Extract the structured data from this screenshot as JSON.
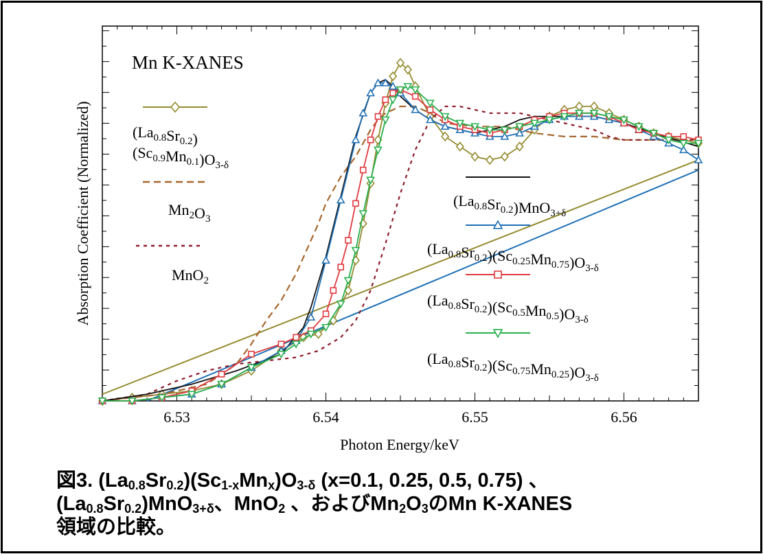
{
  "chart_data": {
    "type": "line",
    "title": "Mn K-XANES",
    "xlabel": "Photon Energy/keV",
    "ylabel": "Absorption Coefficient (Normalized)",
    "xlim": [
      6.525,
      6.565
    ],
    "ylim": [
      0,
      1.12
    ],
    "xticks": [
      "6.53",
      "6.54",
      "6.55",
      "6.56"
    ],
    "y_tick_labels_shown": false,
    "grid": false,
    "legend_placement": "inside",
    "series": [
      {
        "legend": [
          {
            "text": "(La"
          },
          {
            "sub": "0.8"
          },
          {
            "text": "Sr"
          },
          {
            "sub": "0.2"
          },
          {
            "text": ")"
          },
          {
            "br": true
          },
          {
            "text": "(Sc"
          },
          {
            "sub": "0.9"
          },
          {
            "text": "Mn"
          },
          {
            "sub": "0.1"
          },
          {
            "text": ")O"
          },
          {
            "sub": "3-δ"
          }
        ],
        "color": "#948a2f",
        "marker": "diamond",
        "dash": "",
        "x": [
          6.525,
          6.527,
          6.529,
          6.531,
          6.533,
          6.535,
          6.537,
          6.5385,
          6.5395,
          6.5405,
          6.5415,
          6.542,
          6.5425,
          6.543,
          6.5435,
          6.544,
          6.5445,
          6.545,
          6.5455,
          6.546,
          6.547,
          6.548,
          6.549,
          6.55,
          6.551,
          6.552,
          6.553,
          6.554,
          6.555,
          6.556,
          6.557,
          6.558,
          6.559,
          6.56,
          6.561,
          6.562,
          6.563,
          6.564,
          6.565
        ],
        "y": [
          0.0,
          0.01,
          0.02,
          0.03,
          0.05,
          0.09,
          0.15,
          0.19,
          0.2,
          0.24,
          0.33,
          0.42,
          0.53,
          0.65,
          0.78,
          0.89,
          0.97,
          1.01,
          0.99,
          0.94,
          0.85,
          0.79,
          0.76,
          0.73,
          0.72,
          0.73,
          0.76,
          0.81,
          0.85,
          0.87,
          0.88,
          0.88,
          0.86,
          0.84,
          0.82,
          0.8,
          0.79,
          0.78,
          0.77
        ]
      },
      {
        "legend": [
          {
            "text": "Mn"
          },
          {
            "sub": "2"
          },
          {
            "text": "O"
          },
          {
            "sub": "3"
          }
        ],
        "color": "#a6662d",
        "marker": "none",
        "dash": "10,6",
        "x": [
          6.525,
          6.529,
          6.532,
          6.534,
          6.535,
          6.536,
          6.537,
          6.538,
          6.539,
          6.5395,
          6.54,
          6.5405,
          6.541,
          6.542,
          6.5425,
          6.543,
          6.5435,
          6.544,
          6.545,
          6.546,
          6.547,
          6.548,
          6.55,
          6.552,
          6.554,
          6.556,
          6.558,
          6.56,
          6.562,
          6.565
        ],
        "y": [
          0.0,
          0.02,
          0.05,
          0.11,
          0.17,
          0.24,
          0.3,
          0.38,
          0.48,
          0.53,
          0.59,
          0.63,
          0.67,
          0.73,
          0.77,
          0.81,
          0.84,
          0.86,
          0.88,
          0.88,
          0.86,
          0.83,
          0.82,
          0.82,
          0.8,
          0.79,
          0.79,
          0.78,
          0.78,
          0.78
        ]
      },
      {
        "legend": [
          {
            "text": "MnO"
          },
          {
            "sub": "2"
          }
        ],
        "color": "#8c1b2a",
        "marker": "none",
        "dash": "5,6",
        "x": [
          6.525,
          6.528,
          6.53,
          6.532,
          6.534,
          6.536,
          6.538,
          6.5395,
          6.541,
          6.542,
          6.543,
          6.544,
          6.545,
          6.546,
          6.547,
          6.548,
          6.549,
          6.55,
          6.551,
          6.552,
          6.553,
          6.554,
          6.555,
          6.556,
          6.557,
          6.558,
          6.559,
          6.56,
          6.562,
          6.565
        ],
        "y": [
          0.0,
          0.02,
          0.06,
          0.09,
          0.11,
          0.12,
          0.13,
          0.15,
          0.19,
          0.24,
          0.33,
          0.47,
          0.62,
          0.75,
          0.84,
          0.88,
          0.88,
          0.87,
          0.86,
          0.86,
          0.86,
          0.85,
          0.84,
          0.83,
          0.82,
          0.81,
          0.79,
          0.78,
          0.78,
          0.78
        ]
      },
      {
        "legend": [
          {
            "text": "(La"
          },
          {
            "sub": "0.8"
          },
          {
            "text": "Sr"
          },
          {
            "sub": "0.2"
          },
          {
            "text": ")MnO"
          },
          {
            "sub": "3+δ"
          }
        ],
        "color": "#111111",
        "marker": "none",
        "dash": "",
        "x": [
          6.525,
          6.528,
          6.531,
          6.534,
          6.537,
          6.5385,
          6.539,
          6.54,
          6.541,
          6.542,
          6.543,
          6.5435,
          6.544,
          6.5445,
          6.545,
          6.546,
          6.547,
          6.548,
          6.549,
          6.55,
          6.551,
          6.552,
          6.553,
          6.554,
          6.555,
          6.556,
          6.558,
          6.56,
          6.562,
          6.565
        ],
        "y": [
          0.0,
          0.02,
          0.05,
          0.09,
          0.14,
          0.22,
          0.28,
          0.43,
          0.61,
          0.79,
          0.92,
          0.95,
          0.96,
          0.94,
          0.91,
          0.87,
          0.84,
          0.82,
          0.81,
          0.8,
          0.81,
          0.82,
          0.84,
          0.85,
          0.85,
          0.85,
          0.85,
          0.83,
          0.8,
          0.76
        ]
      },
      {
        "legend": [
          {
            "text": "(La"
          },
          {
            "sub": "0.8"
          },
          {
            "text": "Sr"
          },
          {
            "sub": "0.2"
          },
          {
            "text": ")(Sc"
          },
          {
            "sub": "0.25"
          },
          {
            "text": "Mn"
          },
          {
            "sub": "0.75"
          },
          {
            "text": ")O"
          },
          {
            "sub": "3-δ"
          }
        ],
        "color": "#1f6fb4",
        "marker": "triangle-up",
        "dash": "",
        "x": [
          6.525,
          6.527,
          6.529,
          6.531,
          6.533,
          6.535,
          6.537,
          6.538,
          6.539,
          6.54,
          6.541,
          6.542,
          6.5425,
          6.543,
          6.5435,
          6.544,
          6.5445,
          6.545,
          6.546,
          6.547,
          6.548,
          6.549,
          6.55,
          6.551,
          6.552,
          6.553,
          6.554,
          6.555,
          6.556,
          6.557,
          6.558,
          6.559,
          6.56,
          6.561,
          6.562,
          6.563,
          6.564,
          6.565
        ],
        "y": [
          0.0,
          0.0,
          0.01,
          0.02,
          0.05,
          0.1,
          0.15,
          0.18,
          0.25,
          0.42,
          0.6,
          0.78,
          0.86,
          0.92,
          0.95,
          0.95,
          0.94,
          0.92,
          0.87,
          0.84,
          0.82,
          0.81,
          0.8,
          0.79,
          0.79,
          0.8,
          0.82,
          0.84,
          0.85,
          0.85,
          0.85,
          0.84,
          0.83,
          0.81,
          0.79,
          0.77,
          0.75,
          0.72
        ]
      },
      {
        "legend": [
          {
            "text": "(La"
          },
          {
            "sub": "0.8"
          },
          {
            "text": "Sr"
          },
          {
            "sub": "0.2"
          },
          {
            "text": ")(Sc"
          },
          {
            "sub": "0.5"
          },
          {
            "text": "Mn"
          },
          {
            "sub": "0.5"
          },
          {
            "text": ")O"
          },
          {
            "sub": "3-δ"
          }
        ],
        "color": "#e0393e",
        "marker": "square",
        "dash": "",
        "x": [
          6.525,
          6.527,
          6.529,
          6.531,
          6.533,
          6.535,
          6.537,
          6.538,
          6.539,
          6.54,
          6.5405,
          6.541,
          6.5415,
          6.542,
          6.5425,
          6.543,
          6.5435,
          6.544,
          6.5445,
          6.545,
          6.546,
          6.547,
          6.548,
          6.549,
          6.55,
          6.551,
          6.552,
          6.553,
          6.554,
          6.555,
          6.556,
          6.557,
          6.558,
          6.559,
          6.56,
          6.561,
          6.562,
          6.563,
          6.564,
          6.565
        ],
        "y": [
          0.0,
          0.0,
          0.01,
          0.03,
          0.08,
          0.14,
          0.17,
          0.19,
          0.21,
          0.26,
          0.33,
          0.4,
          0.48,
          0.59,
          0.69,
          0.78,
          0.85,
          0.9,
          0.92,
          0.93,
          0.91,
          0.87,
          0.84,
          0.82,
          0.81,
          0.8,
          0.81,
          0.82,
          0.84,
          0.85,
          0.86,
          0.86,
          0.86,
          0.85,
          0.83,
          0.81,
          0.8,
          0.79,
          0.79,
          0.78
        ]
      },
      {
        "legend": [
          {
            "text": "(La"
          },
          {
            "sub": "0.8"
          },
          {
            "text": "Sr"
          },
          {
            "sub": "0.2"
          },
          {
            "text": ")(Sc"
          },
          {
            "sub": "0.75"
          },
          {
            "text": "Mn"
          },
          {
            "sub": "0.25"
          },
          {
            "text": ")O"
          },
          {
            "sub": "3-δ"
          }
        ],
        "color": "#27b04c",
        "marker": "triangle-down",
        "dash": "",
        "x": [
          6.525,
          6.527,
          6.529,
          6.531,
          6.533,
          6.535,
          6.537,
          6.538,
          6.539,
          6.54,
          6.541,
          6.5415,
          6.542,
          6.5425,
          6.543,
          6.5435,
          6.544,
          6.5445,
          6.545,
          6.5455,
          6.546,
          6.547,
          6.548,
          6.549,
          6.55,
          6.551,
          6.552,
          6.553,
          6.554,
          6.555,
          6.556,
          6.557,
          6.558,
          6.559,
          6.56,
          6.561,
          6.562,
          6.563,
          6.564,
          6.565
        ],
        "y": [
          0.0,
          0.0,
          0.01,
          0.02,
          0.05,
          0.1,
          0.14,
          0.17,
          0.2,
          0.22,
          0.29,
          0.36,
          0.45,
          0.56,
          0.66,
          0.75,
          0.84,
          0.9,
          0.93,
          0.94,
          0.93,
          0.89,
          0.85,
          0.83,
          0.82,
          0.81,
          0.81,
          0.82,
          0.83,
          0.84,
          0.85,
          0.86,
          0.86,
          0.85,
          0.84,
          0.82,
          0.8,
          0.78,
          0.77,
          0.77
        ]
      }
    ],
    "extra_lines": [
      {
        "color": "#948a2f",
        "x": [
          6.525,
          6.565
        ],
        "y": [
          0.02,
          0.72
        ]
      },
      {
        "color": "#1f6fb4",
        "x": [
          6.528,
          6.565
        ],
        "y": [
          0.0,
          0.69
        ]
      }
    ]
  },
  "caption": [
    {
      "text": "図3. (La"
    },
    {
      "sub": "0.8"
    },
    {
      "text": "Sr"
    },
    {
      "sub": "0.2"
    },
    {
      "text": ")(Sc"
    },
    {
      "sub": "1-x"
    },
    {
      "text": "Mn"
    },
    {
      "sub": "x"
    },
    {
      "text": ")O"
    },
    {
      "sub": "3-δ"
    },
    {
      "text": " (x=0.1, 0.25, 0.5, 0.75) 、"
    },
    {
      "br": true
    },
    {
      "text": "(La"
    },
    {
      "sub": "0.8"
    },
    {
      "text": "Sr"
    },
    {
      "sub": "0.2"
    },
    {
      "text": ")MnO"
    },
    {
      "sub": "3+δ"
    },
    {
      "text": "、MnO"
    },
    {
      "sub": "2"
    },
    {
      "text": " 、およびMn"
    },
    {
      "sub": "2"
    },
    {
      "text": "O"
    },
    {
      "sub": "3"
    },
    {
      "text": "のMn K-XANES"
    },
    {
      "br": true
    },
    {
      "text": "領域の比較。"
    }
  ]
}
